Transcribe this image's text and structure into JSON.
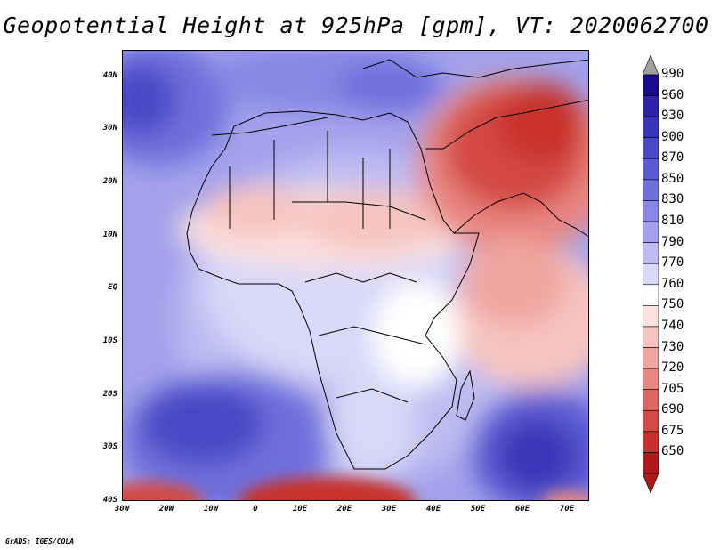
{
  "title": "Geopotential Height at 925hPa [gpm], VT: 2020062700",
  "credit": "GrADS: IGES/COLA",
  "map": {
    "lon_range": [
      -30,
      75
    ],
    "lat_range": [
      -40,
      45
    ],
    "y_ticks": [
      {
        "label": "40N",
        "lat": 40
      },
      {
        "label": "30N",
        "lat": 30
      },
      {
        "label": "20N",
        "lat": 20
      },
      {
        "label": "10N",
        "lat": 10
      },
      {
        "label": "EQ",
        "lat": 0
      },
      {
        "label": "10S",
        "lat": -10
      },
      {
        "label": "20S",
        "lat": -20
      },
      {
        "label": "30S",
        "lat": -30
      },
      {
        "label": "40S",
        "lat": -40
      }
    ],
    "x_ticks": [
      {
        "label": "30W",
        "lon": -30
      },
      {
        "label": "20W",
        "lon": -20
      },
      {
        "label": "10W",
        "lon": -10
      },
      {
        "label": "0",
        "lon": 0
      },
      {
        "label": "10E",
        "lon": 10
      },
      {
        "label": "20E",
        "lon": 20
      },
      {
        "label": "30E",
        "lon": 30
      },
      {
        "label": "40E",
        "lon": 40
      },
      {
        "label": "50E",
        "lon": 50
      },
      {
        "label": "60E",
        "lon": 60
      },
      {
        "label": "70E",
        "lon": 70
      }
    ]
  },
  "colorbar": {
    "levels": [
      {
        "label": "990",
        "color": "#1a0a8c"
      },
      {
        "label": "960",
        "color": "#2b22a8"
      },
      {
        "label": "930",
        "color": "#3a34b8"
      },
      {
        "label": "900",
        "color": "#4a48c6"
      },
      {
        "label": "870",
        "color": "#5c5cd2"
      },
      {
        "label": "850",
        "color": "#7070dc"
      },
      {
        "label": "830",
        "color": "#8888e4"
      },
      {
        "label": "810",
        "color": "#a2a2ec"
      },
      {
        "label": "790",
        "color": "#bcbcf2"
      },
      {
        "label": "770",
        "color": "#d8d8f8"
      },
      {
        "label": "760",
        "color": "#ffffff"
      },
      {
        "label": "750",
        "color": "#fbe0de"
      },
      {
        "label": "740",
        "color": "#f6c4c0"
      },
      {
        "label": "730",
        "color": "#f0a6a0"
      },
      {
        "label": "720",
        "color": "#e88680"
      },
      {
        "label": "705",
        "color": "#de6660"
      },
      {
        "label": "690",
        "color": "#d44a44"
      },
      {
        "label": "675",
        "color": "#c8302c"
      },
      {
        "label": "650",
        "color": "#b01818"
      }
    ],
    "top_arrow_color": "#a0a0a0",
    "bottom_arrow_color": "#b01818"
  }
}
